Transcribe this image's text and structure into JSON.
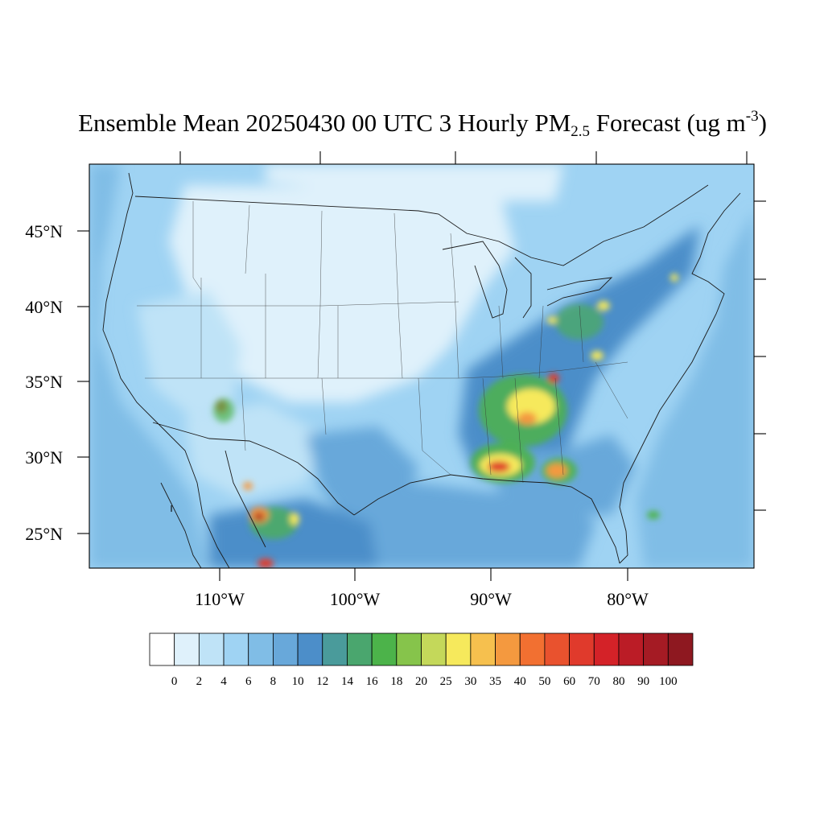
{
  "title": {
    "main": "Ensemble Mean 20250430 00 UTC 3 Hourly PM",
    "sub": "2.5",
    "unit_open": " Forecast (ug m",
    "sup": "-3",
    "unit_close": ")"
  },
  "lat_labels": [
    "45°N",
    "40°N",
    "35°N",
    "30°N",
    "25°N"
  ],
  "lon_labels": [
    "110°W",
    "100°W",
    "90°W",
    "80°W"
  ],
  "colorbar": {
    "colors": [
      "#ffffff",
      "#dff1fb",
      "#bfe3f7",
      "#9fd3f3",
      "#80bde6",
      "#68a8da",
      "#4c8ec9",
      "#4a9b9b",
      "#4aa66e",
      "#4cb34a",
      "#86c44b",
      "#c4d85a",
      "#f6e95c",
      "#f6c04e",
      "#f4993f",
      "#f27031",
      "#e9522e",
      "#e03a2c",
      "#d42228",
      "#bb1c26",
      "#a51b24",
      "#8e1820"
    ],
    "labels": [
      "0",
      "2",
      "4",
      "6",
      "8",
      "10",
      "12",
      "14",
      "16",
      "18",
      "20",
      "25",
      "30",
      "35",
      "40",
      "50",
      "60",
      "70",
      "80",
      "90",
      "100"
    ]
  },
  "map_colors": {
    "background": "#9fd3f3",
    "ocean_far": "#80bde6",
    "plains": "#dff1fb",
    "light": "#bfe3f7",
    "mid": "#68a8da",
    "dark": "#4c8ec9",
    "hot_green": "#4cb34a",
    "hot_yellow": "#f6e95c",
    "hot_orange": "#f4993f",
    "hot_red": "#e03a2c",
    "hot_dark": "#a51b24"
  }
}
